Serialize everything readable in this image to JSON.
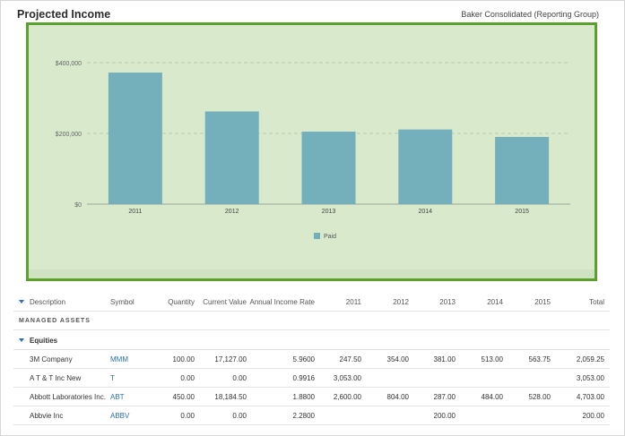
{
  "header": {
    "title": "Projected Income",
    "group": "Baker Consolidated (Reporting Group)"
  },
  "chart_data": {
    "type": "bar",
    "categories": [
      "2011",
      "2012",
      "2013",
      "2014",
      "2015"
    ],
    "series": [
      {
        "name": "Paid",
        "values": [
          372000,
          262000,
          205000,
          211000,
          190000
        ]
      }
    ],
    "y_ticks": [
      "$0",
      "$200,000",
      "$400,000"
    ],
    "y_tick_values": [
      0,
      200000,
      400000
    ],
    "ylim": [
      0,
      400000
    ],
    "grid": true,
    "legend": "bottom-center",
    "bar_color": "#74b0bb"
  },
  "table": {
    "columns": {
      "description": "Description",
      "symbol": "Symbol",
      "quantity": "Quantity",
      "current_value": "Current Value",
      "rate": "Annual Income Rate",
      "y2011": "2011",
      "y2012": "2012",
      "y2013": "2013",
      "y2014": "2014",
      "y2015": "2015",
      "total": "Total"
    },
    "section_label": "MANAGED ASSETS",
    "group_label": "Equities",
    "rows": [
      {
        "description": "3M Company",
        "symbol": "MMM",
        "quantity": "100.00",
        "current_value": "17,127.00",
        "rate": "5.9600",
        "y2011": "247.50",
        "y2012": "354.00",
        "y2013": "381.00",
        "y2014": "513.00",
        "y2015": "563.75",
        "total": "2,059.25"
      },
      {
        "description": "A T & T Inc New",
        "symbol": "T",
        "quantity": "0.00",
        "current_value": "0.00",
        "rate": "0.9916",
        "y2011": "3,053.00",
        "y2012": "",
        "y2013": "",
        "y2014": "",
        "y2015": "",
        "total": "3,053.00"
      },
      {
        "description": "Abbott Laboratories Inc.",
        "symbol": "ABT",
        "quantity": "450.00",
        "current_value": "18,184.50",
        "rate": "1.8800",
        "y2011": "2,600.00",
        "y2012": "804.00",
        "y2013": "287.00",
        "y2014": "484.00",
        "y2015": "528.00",
        "total": "4,703.00"
      },
      {
        "description": "Abbvie Inc",
        "symbol": "ABBV",
        "quantity": "0.00",
        "current_value": "0.00",
        "rate": "2.2800",
        "y2011": "",
        "y2012": "",
        "y2013": "200.00",
        "y2014": "",
        "y2015": "",
        "total": "200.00"
      }
    ]
  }
}
